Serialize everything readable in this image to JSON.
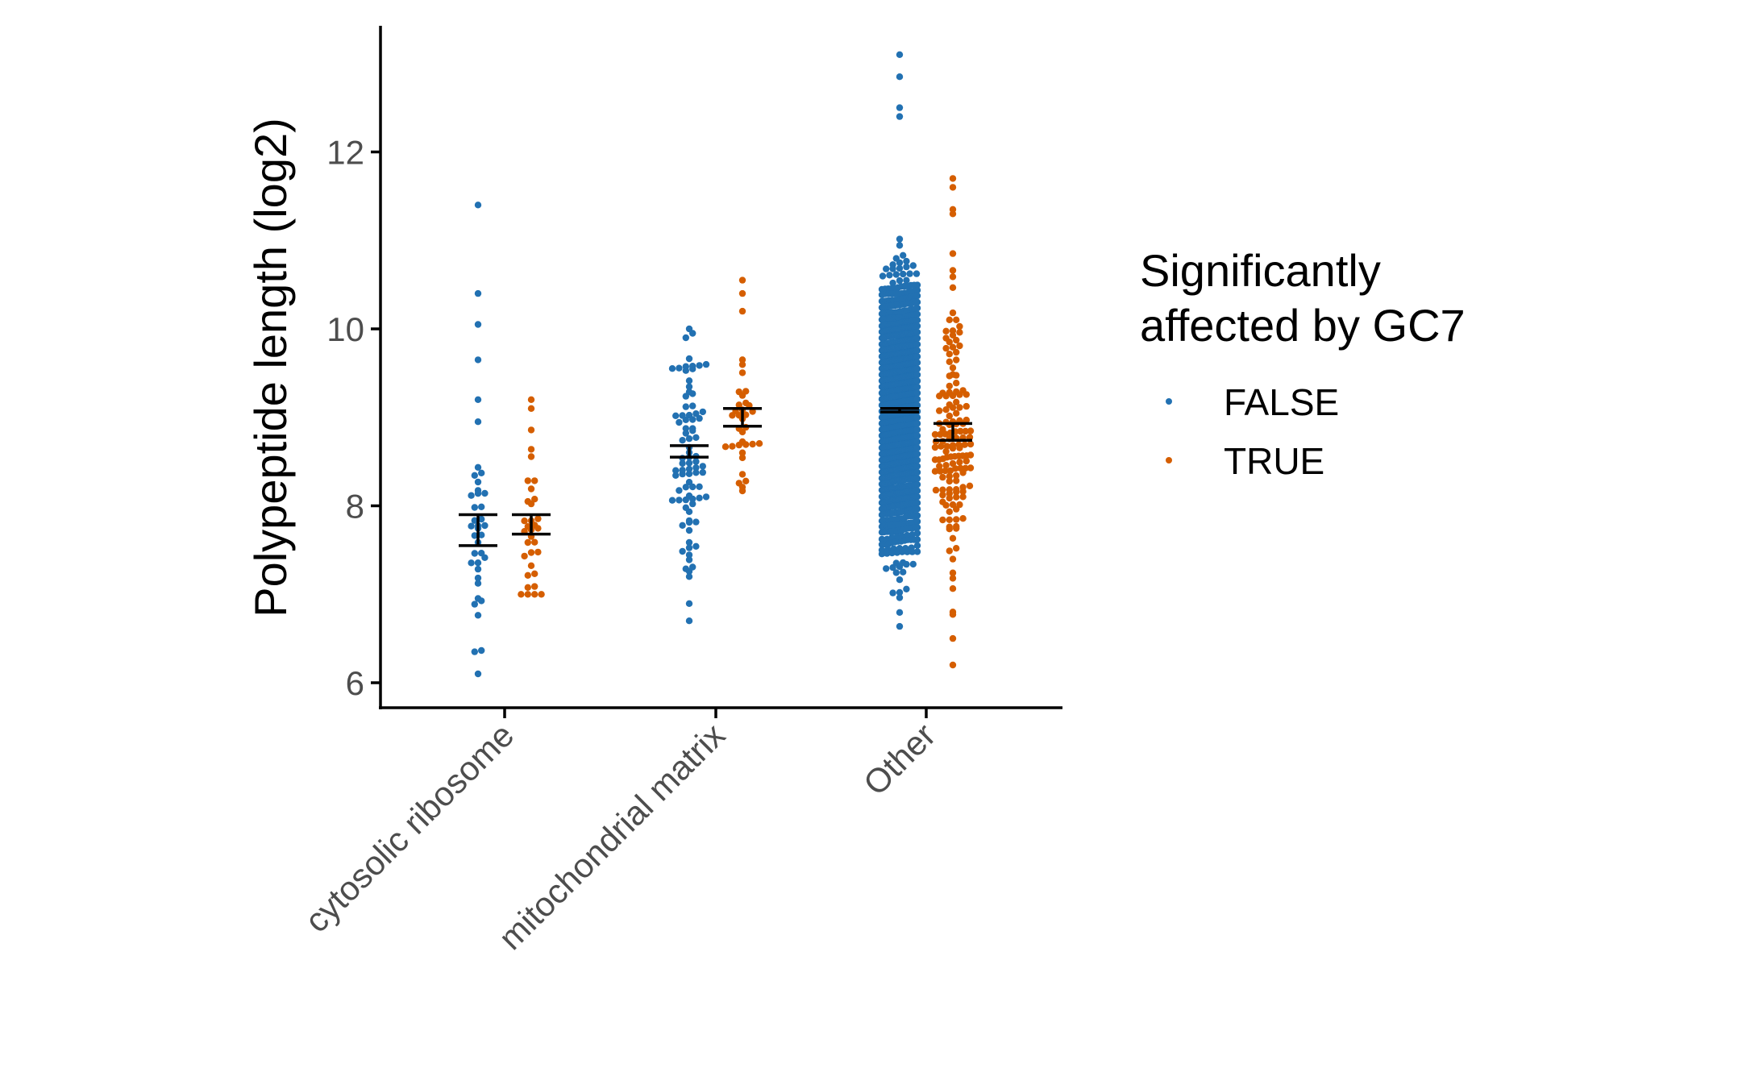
{
  "chart_data": {
    "type": "scatter",
    "subtype": "beeswarm with mean ± standard error bars",
    "title": "",
    "xlabel": "",
    "ylabel": "Polypeptide length (log2)",
    "ylim": [
      5.8,
      13.5
    ],
    "yticks": [
      6,
      8,
      10,
      12
    ],
    "grid": false,
    "categories": [
      "cytosolic ribosome",
      "mitochondrial matrix",
      "Other"
    ],
    "legend": {
      "title_lines": [
        "Significantly",
        "affected by GC7"
      ],
      "placement": "right",
      "entries": [
        "FALSE",
        "TRUE"
      ]
    },
    "series": [
      {
        "name": "FALSE",
        "color": "#2271B2",
        "groups": [
          {
            "category": "cytosolic ribosome",
            "n": 40,
            "min": 6.1,
            "max": 11.4,
            "median": 7.6,
            "spread": 0.6,
            "outliers": [
              11.4,
              10.4,
              10.05,
              9.65,
              9.2,
              8.95,
              6.35,
              6.1
            ],
            "mean": 7.72,
            "se_low": 7.55,
            "se_high": 7.9
          },
          {
            "category": "mitochondrial matrix",
            "n": 85,
            "min": 6.7,
            "max": 10.0,
            "median": 8.6,
            "spread": 0.65,
            "outliers": [
              10.0,
              9.95,
              7.2,
              6.7
            ],
            "mean": 8.62,
            "se_low": 8.55,
            "se_high": 8.68
          },
          {
            "category": "Other",
            "n": 3500,
            "min": 6.4,
            "max": 13.1,
            "median": 9.05,
            "spread": 0.6,
            "outliers": [
              13.1,
              12.85,
              12.5,
              12.4
            ],
            "mean": 9.08,
            "se_low": 9.06,
            "se_high": 9.1
          }
        ]
      },
      {
        "name": "TRUE",
        "color": "#D55E00",
        "groups": [
          {
            "category": "cytosolic ribosome",
            "n": 34,
            "min": 6.9,
            "max": 9.2,
            "median": 7.7,
            "spread": 0.55,
            "outliers": [
              9.2,
              9.1
            ],
            "mean": 7.79,
            "se_low": 7.68,
            "se_high": 7.9
          },
          {
            "category": "mitochondrial matrix",
            "n": 36,
            "min": 7.9,
            "max": 10.55,
            "median": 8.95,
            "spread": 0.45,
            "outliers": [
              10.55,
              10.4,
              10.2
            ],
            "mean": 9.0,
            "se_low": 8.9,
            "se_high": 9.1
          },
          {
            "category": "Other",
            "n": 150,
            "min": 6.2,
            "max": 11.7,
            "median": 8.8,
            "spread": 0.75,
            "outliers": [
              11.7,
              11.6,
              11.35,
              11.3,
              6.8,
              6.5,
              6.2
            ],
            "mean": 8.83,
            "se_low": 8.74,
            "se_high": 8.93
          }
        ]
      }
    ]
  }
}
